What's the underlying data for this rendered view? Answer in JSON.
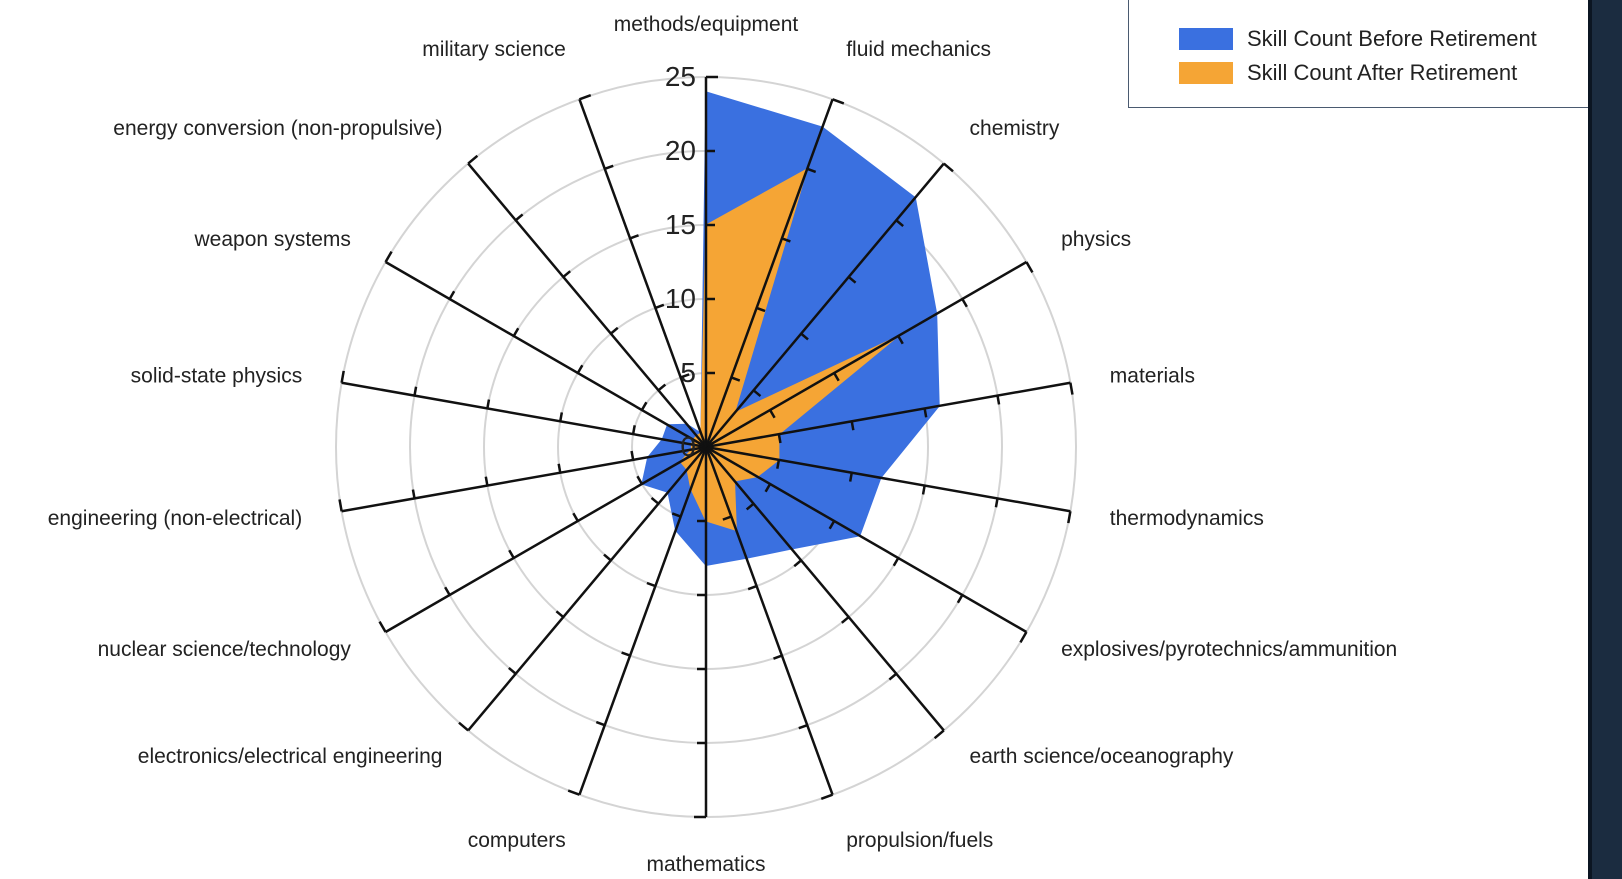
{
  "chart_data": {
    "type": "radar",
    "title": "",
    "categories": [
      "methods/equipment",
      "fluid mechanics",
      "chemistry",
      "physics",
      "materials",
      "thermodynamics",
      "explosives/pyrotechnics/ammunition",
      "earth science/oceanography",
      "propulsion/fuels",
      "mathematics",
      "computers",
      "electronics/electrical engineering",
      "nuclear science/technology",
      "engineering (non-electrical)",
      "solid-state physics",
      "weapon systems",
      "energy conversion (non-propulsive)",
      "military science"
    ],
    "series": [
      {
        "name": "Skill Count Before Retirement",
        "color": "#3a70e0",
        "values": [
          24,
          23,
          22,
          18,
          16,
          12,
          12,
          9,
          8,
          8,
          6,
          4,
          5,
          4,
          3,
          3,
          2,
          1
        ]
      },
      {
        "name": "Skill Count After Retirement",
        "color": "#f5a535",
        "values": [
          15,
          20,
          3,
          15,
          5,
          5,
          4,
          3,
          6,
          5,
          3,
          2,
          2,
          1,
          1,
          1,
          1,
          1
        ]
      }
    ],
    "radial_axis": {
      "min": 0,
      "max": 25,
      "ticks": [
        0,
        5,
        10,
        15,
        20,
        25
      ]
    },
    "grid": true,
    "legend_position": "top-right"
  }
}
